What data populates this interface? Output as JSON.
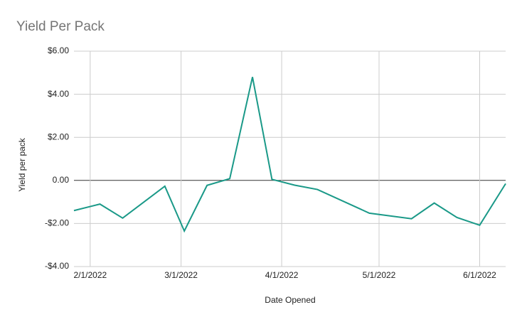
{
  "chart_data": {
    "type": "line",
    "title": "Yield Per Pack",
    "x_label": "Date Opened",
    "y_label": "Yield per pack",
    "x": [
      "2022-01-27",
      "2022-02-04",
      "2022-02-11",
      "2022-02-24",
      "2022-03-02",
      "2022-03-09",
      "2022-03-16",
      "2022-03-23",
      "2022-03-29",
      "2022-04-05",
      "2022-04-12",
      "2022-04-28",
      "2022-05-11",
      "2022-05-18",
      "2022-05-25",
      "2022-06-01",
      "2022-06-09"
    ],
    "series": [
      {
        "name": "Yield per pack",
        "color": "#1a9988",
        "values": [
          -1.4,
          -1.1,
          -1.75,
          -0.27,
          -2.35,
          -0.23,
          0.08,
          4.8,
          0.05,
          -0.22,
          -0.42,
          -1.52,
          -1.78,
          -1.05,
          -1.72,
          -2.08,
          -0.15
        ]
      }
    ],
    "xlim": [
      "2022-01-27",
      "2022-06-09"
    ],
    "xticks": [
      {
        "value": "2022-02-01",
        "label": "2/1/2022"
      },
      {
        "value": "2022-03-01",
        "label": "3/1/2022"
      },
      {
        "value": "2022-04-01",
        "label": "4/1/2022"
      },
      {
        "value": "2022-05-01",
        "label": "5/1/2022"
      },
      {
        "value": "2022-06-01",
        "label": "6/1/2022"
      }
    ],
    "ylim": [
      -4,
      6
    ],
    "yticks": [
      {
        "value": -4,
        "label": "-$4.00"
      },
      {
        "value": -2,
        "label": "-$2.00"
      },
      {
        "value": 0,
        "label": "0.00"
      },
      {
        "value": 2,
        "label": "$2.00"
      },
      {
        "value": 4,
        "label": "$4.00"
      },
      {
        "value": 6,
        "label": "$6.00"
      }
    ],
    "grid": true
  }
}
